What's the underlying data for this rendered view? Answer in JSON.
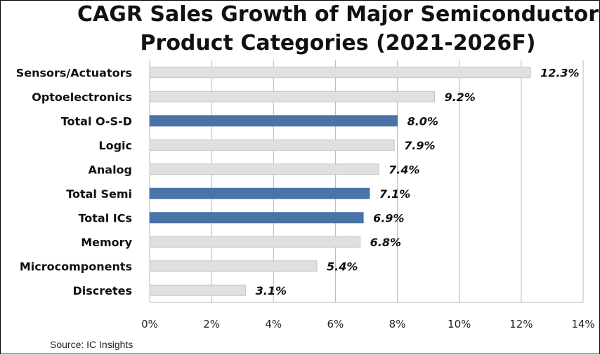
{
  "title_line1": "CAGR Sales Growth of Major Semiconductor",
  "title_line2": "Product Categories (2021-2026F)",
  "source": "Source:  IC Insights",
  "colors": {
    "highlight": "#4a73a8",
    "normal": "#e0e0e0",
    "normal_edge": "#c4c4c4",
    "grid": "#b8b8b8"
  },
  "chart_data": {
    "type": "bar",
    "orientation": "horizontal",
    "title": "CAGR Sales Growth of Major Semiconductor Product Categories (2021-2026F)",
    "xlabel": "",
    "ylabel": "",
    "xlim": [
      0,
      14
    ],
    "x_ticks": [
      "0%",
      "2%",
      "4%",
      "6%",
      "8%",
      "10%",
      "12%",
      "14%"
    ],
    "grid": true,
    "categories": [
      "Sensors/Actuators",
      "Optoelectronics",
      "Total O-S-D",
      "Logic",
      "Analog",
      "Total Semi",
      "Total ICs",
      "Memory",
      "Microcomponents",
      "Discretes"
    ],
    "values": [
      12.3,
      9.2,
      8.0,
      7.9,
      7.4,
      7.1,
      6.9,
      6.8,
      5.4,
      3.1
    ],
    "value_labels": [
      "12.3%",
      "9.2%",
      "8.0%",
      "7.9%",
      "7.4%",
      "7.1%",
      "6.9%",
      "6.8%",
      "5.4%",
      "3.1%"
    ],
    "highlighted": [
      "Total O-S-D",
      "Total Semi",
      "Total ICs"
    ]
  }
}
